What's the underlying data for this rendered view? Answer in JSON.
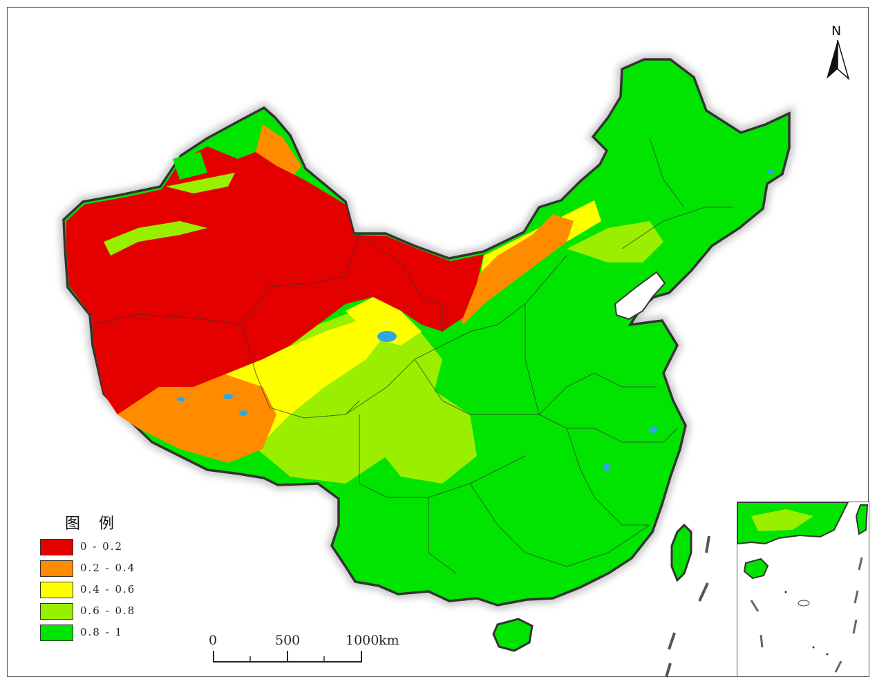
{
  "legend": {
    "title": "图 例",
    "items": [
      {
        "label": "0 - 0.2",
        "color": "#e50000"
      },
      {
        "label": "0.2 - 0.4",
        "color": "#ff8c00"
      },
      {
        "label": "0.4 - 0.6",
        "color": "#ffff00"
      },
      {
        "label": "0.6 - 0.8",
        "color": "#9aef00"
      },
      {
        "label": "0.8 - 1",
        "color": "#00e400"
      }
    ]
  },
  "scale_bar": {
    "ticks": [
      "0",
      "500",
      "1000"
    ],
    "unit": "km"
  },
  "north_arrow": {
    "label": "N"
  },
  "colors": {
    "border": "#333333",
    "water": "#2fa8e0",
    "shadow": "#c8c8c8"
  }
}
